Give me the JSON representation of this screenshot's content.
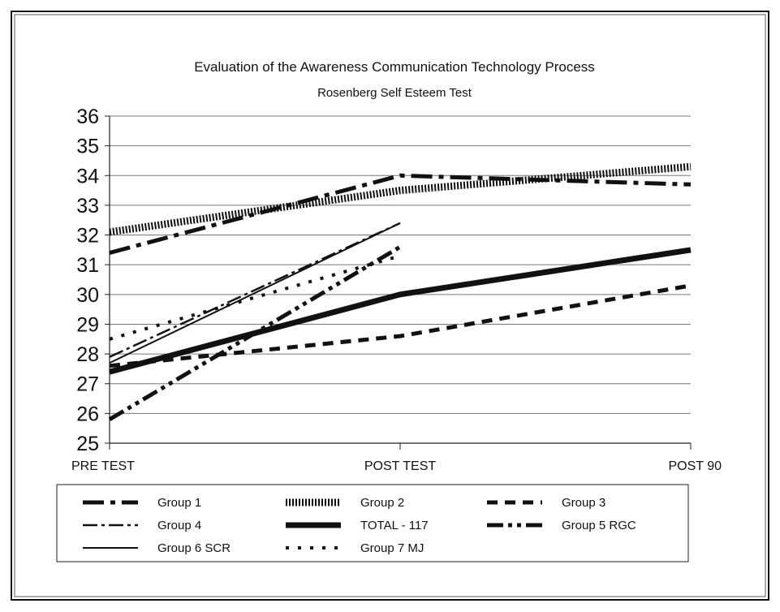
{
  "chart_data": {
    "type": "line",
    "title": "Evaluation of the Awareness Communication Technology Process",
    "subtitle": "Rosenberg Self Esteem Test",
    "categories": [
      "PRE TEST",
      "POST TEST",
      "POST 90"
    ],
    "ylim": [
      25,
      36
    ],
    "yticks": [
      25,
      26,
      27,
      28,
      29,
      30,
      31,
      32,
      33,
      34,
      35,
      36
    ],
    "grid": true,
    "legend_position": "bottom",
    "series": [
      {
        "name": "Group 1",
        "values": [
          31.4,
          34.0,
          33.7
        ],
        "style": "dash-dot-thick"
      },
      {
        "name": "Group 2",
        "values": [
          32.1,
          33.5,
          34.3
        ],
        "style": "striped-thick"
      },
      {
        "name": "Group 3",
        "values": [
          27.6,
          28.6,
          30.3
        ],
        "style": "dashed-thick"
      },
      {
        "name": "Group 4",
        "values": [
          27.9,
          32.4,
          null
        ],
        "style": "dash-dot-thin"
      },
      {
        "name": "TOTAL - 117",
        "values": [
          27.4,
          30.0,
          31.5
        ],
        "style": "solid-heavy"
      },
      {
        "name": "Group 5 RGC",
        "values": [
          25.8,
          31.6,
          null
        ],
        "style": "dash-dot-dot"
      },
      {
        "name": "Group 6 SCR",
        "values": [
          27.7,
          32.4,
          null
        ],
        "style": "solid-thin"
      },
      {
        "name": "Group 7 MJ",
        "values": [
          28.5,
          31.3,
          null
        ],
        "style": "dotted"
      }
    ],
    "legend_order": [
      "Group 1",
      "Group 2",
      "Group 3",
      "Group 4",
      "TOTAL - 117",
      "Group 5 RGC",
      "Group 6 SCR",
      "Group 7 MJ"
    ]
  }
}
